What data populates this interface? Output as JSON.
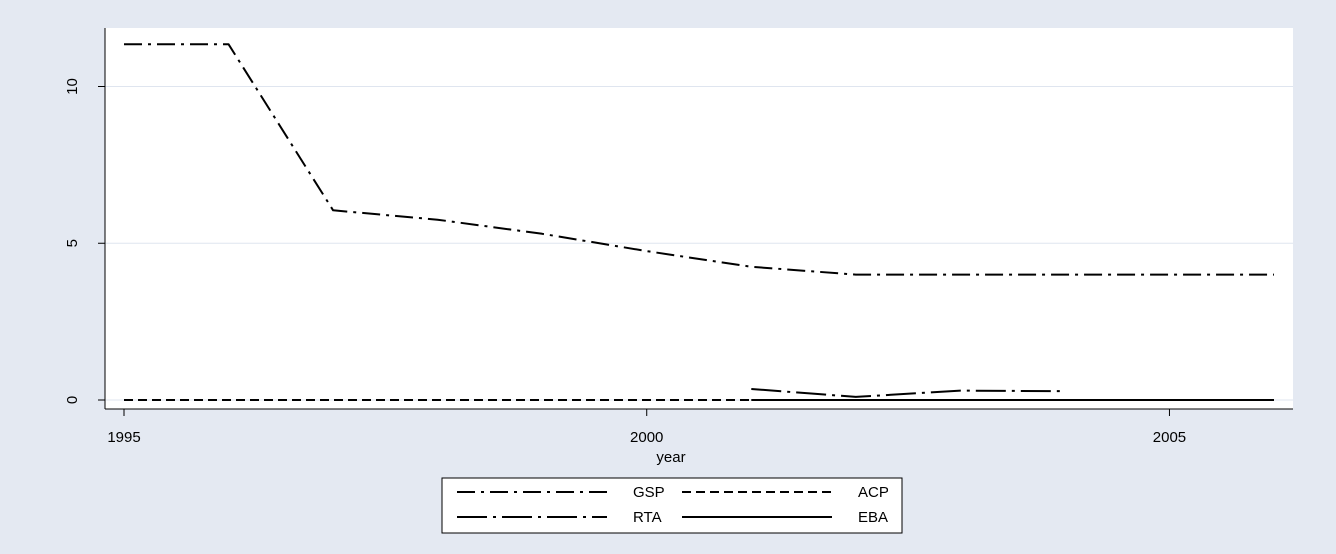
{
  "chart_data": {
    "type": "line",
    "title": "",
    "xlabel": "year",
    "ylabel": "",
    "xlim": [
      1995,
      2006
    ],
    "ylim": [
      0,
      11.7
    ],
    "xticks": [
      "1995",
      "2000",
      "2005"
    ],
    "yticks": [
      "0",
      "5",
      "10"
    ],
    "grid": "horizontal",
    "legend_position": "bottom",
    "colors": {
      "background": "#e4e9f2",
      "plot": "#ffffff",
      "line": "#000000",
      "grid": "#dfe5ef"
    },
    "series": [
      {
        "name": "GSP",
        "style": "dash-dot",
        "points": [
          [
            1995,
            11.35
          ],
          [
            1996,
            11.35
          ],
          [
            1997,
            6.05
          ],
          [
            1998,
            5.75
          ],
          [
            1999,
            5.3
          ],
          [
            2000,
            4.75
          ],
          [
            2001,
            4.25
          ],
          [
            2002,
            4.0
          ],
          [
            2003,
            4.0
          ],
          [
            2004,
            4.0
          ],
          [
            2005,
            4.0
          ],
          [
            2006,
            4.0
          ]
        ]
      },
      {
        "name": "ACP",
        "style": "dashed",
        "points": [
          [
            1995,
            0
          ],
          [
            1996,
            0
          ],
          [
            1997,
            0
          ],
          [
            1998,
            0
          ],
          [
            1999,
            0
          ],
          [
            2000,
            0
          ],
          [
            2001,
            0
          ],
          [
            2002,
            0
          ],
          [
            2003,
            0
          ],
          [
            2004,
            0
          ],
          [
            2005,
            0
          ],
          [
            2006,
            0
          ]
        ]
      },
      {
        "name": "RTA",
        "style": "long-dash-dot",
        "points": [
          [
            2001,
            0.35
          ],
          [
            2002,
            0.1
          ],
          [
            2003,
            0.3
          ],
          [
            2004,
            0.28
          ]
        ]
      },
      {
        "name": "EBA",
        "style": "solid",
        "points": [
          [
            2001,
            0
          ],
          [
            2002,
            0
          ],
          [
            2003,
            0
          ],
          [
            2004,
            0
          ],
          [
            2005,
            0
          ],
          [
            2006,
            0
          ]
        ]
      }
    ]
  }
}
